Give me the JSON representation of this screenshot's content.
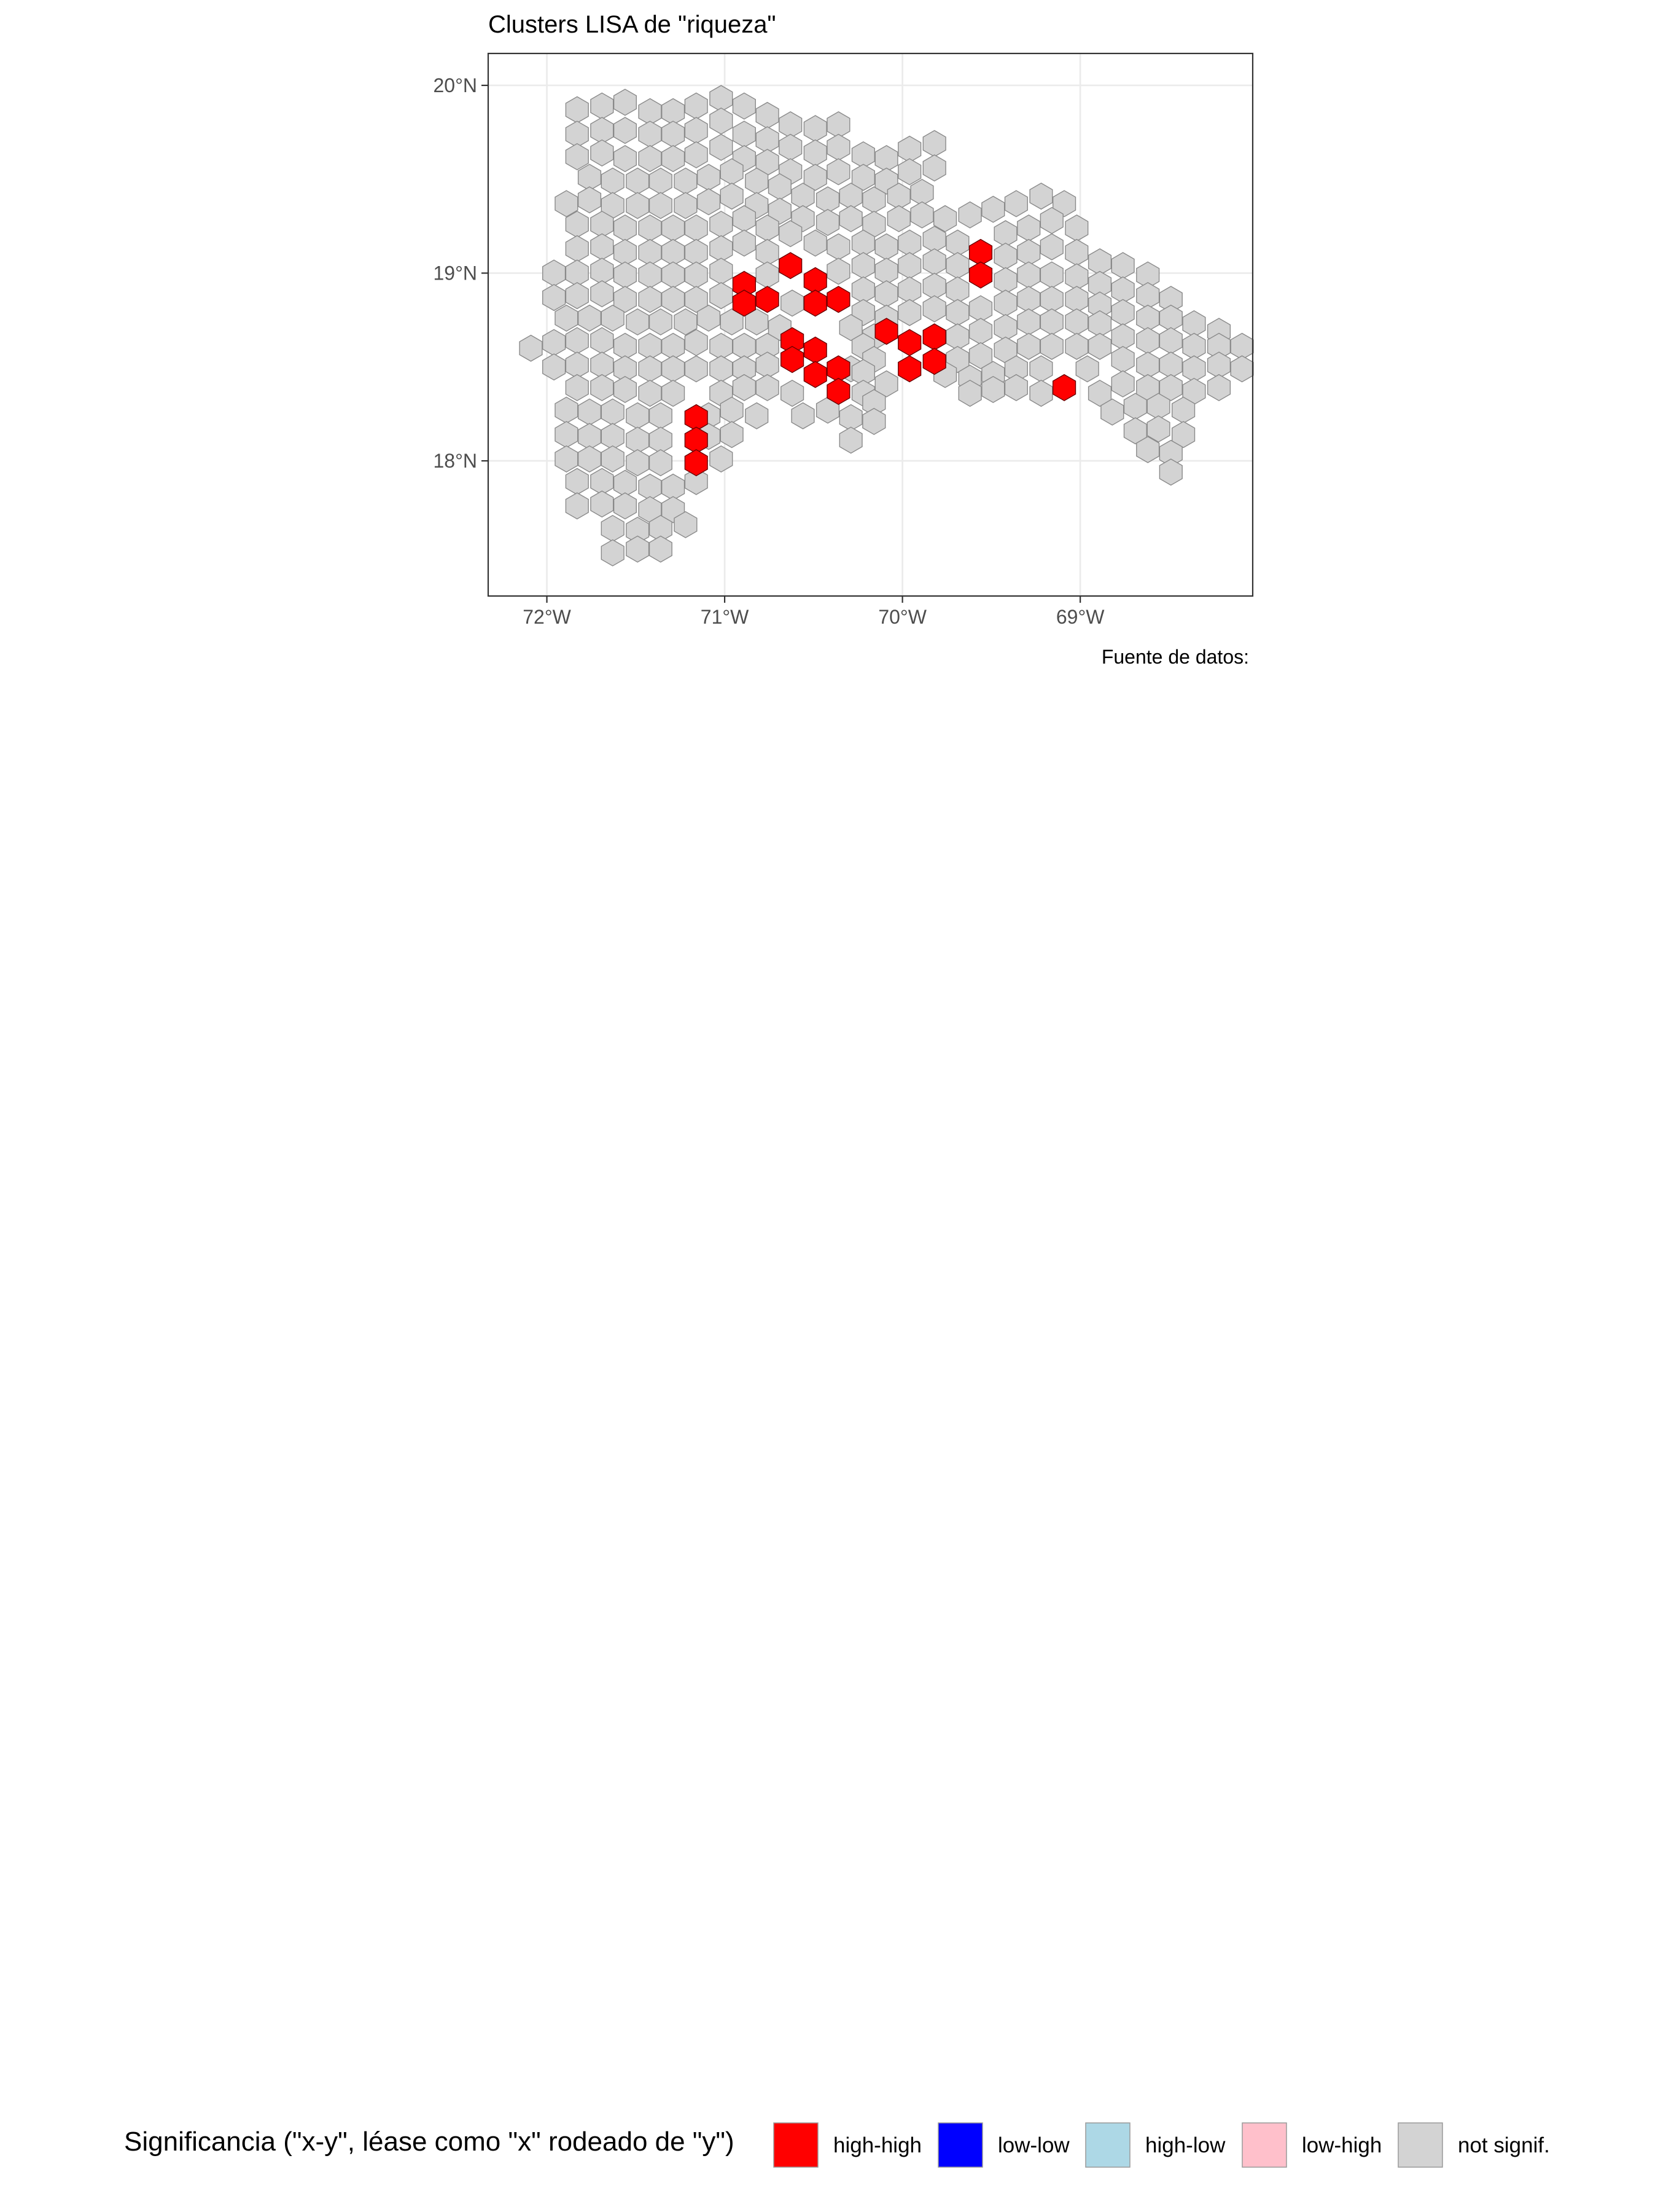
{
  "chart_data": {
    "type": "map",
    "title": "Clusters LISA de \"riqueza\"",
    "caption": "Fuente de datos:",
    "x_ticks": [
      {
        "lon": -72,
        "label": "72°W"
      },
      {
        "lon": -71,
        "label": "71°W"
      },
      {
        "lon": -70,
        "label": "70°W"
      },
      {
        "lon": -69,
        "label": "69°W"
      }
    ],
    "y_ticks": [
      {
        "lat": 20,
        "label": "20°N"
      },
      {
        "lat": 19,
        "label": "19°N"
      },
      {
        "lat": 18,
        "label": "18°N"
      }
    ],
    "xlim": [
      -72.33,
      -68.03
    ],
    "ylim": [
      17.28,
      20.17
    ],
    "grid": true,
    "legend_position": "bottom",
    "legend": {
      "title": "Significancia (\"x-y\", léase como \"x\" rodeado de \"y\")",
      "items": [
        {
          "key": "high-high",
          "label": "high-high",
          "color": "#ff0000"
        },
        {
          "key": "low-low",
          "label": "low-low",
          "color": "#0000ff"
        },
        {
          "key": "high-low",
          "label": "high-low",
          "color": "#add8e6"
        },
        {
          "key": "low-high",
          "label": "low-high",
          "color": "#ffc0cb"
        },
        {
          "key": "not-signif",
          "label": "not signif.",
          "color": "#d3d3d3"
        }
      ]
    },
    "hex_width_lon": 0.127,
    "cells_not_significant": [
      [
        -71.83,
        19.87
      ],
      [
        -71.69,
        19.89
      ],
      [
        -71.56,
        19.91
      ],
      [
        -71.42,
        19.86
      ],
      [
        -71.29,
        19.86
      ],
      [
        -71.16,
        19.89
      ],
      [
        -71.02,
        19.93
      ],
      [
        -70.89,
        19.89
      ],
      [
        -70.76,
        19.84
      ],
      [
        -70.63,
        19.79
      ],
      [
        -70.49,
        19.77
      ],
      [
        -70.36,
        19.79
      ],
      [
        -71.83,
        19.74
      ],
      [
        -71.69,
        19.76
      ],
      [
        -71.56,
        19.76
      ],
      [
        -71.42,
        19.74
      ],
      [
        -71.29,
        19.74
      ],
      [
        -71.16,
        19.76
      ],
      [
        -71.02,
        19.81
      ],
      [
        -70.89,
        19.74
      ],
      [
        -70.76,
        19.71
      ],
      [
        -70.63,
        19.67
      ],
      [
        -70.49,
        19.64
      ],
      [
        -70.36,
        19.67
      ],
      [
        -70.22,
        19.63
      ],
      [
        -70.09,
        19.61
      ],
      [
        -69.96,
        19.66
      ],
      [
        -69.82,
        19.69
      ],
      [
        -71.83,
        19.62
      ],
      [
        -71.69,
        19.64
      ],
      [
        -71.56,
        19.61
      ],
      [
        -71.42,
        19.61
      ],
      [
        -71.29,
        19.61
      ],
      [
        -71.16,
        19.63
      ],
      [
        -71.02,
        19.67
      ],
      [
        -70.89,
        19.61
      ],
      [
        -70.76,
        19.59
      ],
      [
        -70.63,
        19.54
      ],
      [
        -70.49,
        19.51
      ],
      [
        -70.36,
        19.54
      ],
      [
        -70.22,
        19.51
      ],
      [
        -70.09,
        19.49
      ],
      [
        -69.96,
        19.54
      ],
      [
        -69.82,
        19.56
      ],
      [
        -71.76,
        19.51
      ],
      [
        -71.63,
        19.49
      ],
      [
        -71.49,
        19.49
      ],
      [
        -71.36,
        19.49
      ],
      [
        -71.22,
        19.49
      ],
      [
        -71.09,
        19.51
      ],
      [
        -70.96,
        19.54
      ],
      [
        -70.82,
        19.49
      ],
      [
        -70.69,
        19.46
      ],
      [
        -70.56,
        19.41
      ],
      [
        -70.42,
        19.39
      ],
      [
        -70.29,
        19.41
      ],
      [
        -70.16,
        19.39
      ],
      [
        -70.02,
        19.41
      ],
      [
        -69.89,
        19.43
      ],
      [
        -71.89,
        19.37
      ],
      [
        -71.76,
        19.39
      ],
      [
        -71.63,
        19.36
      ],
      [
        -71.49,
        19.36
      ],
      [
        -71.36,
        19.36
      ],
      [
        -71.22,
        19.36
      ],
      [
        -71.09,
        19.38
      ],
      [
        -70.96,
        19.41
      ],
      [
        -70.82,
        19.36
      ],
      [
        -70.69,
        19.33
      ],
      [
        -70.56,
        19.29
      ],
      [
        -70.42,
        19.27
      ],
      [
        -70.29,
        19.29
      ],
      [
        -70.16,
        19.26
      ],
      [
        -70.02,
        19.29
      ],
      [
        -69.89,
        19.31
      ],
      [
        -69.76,
        19.29
      ],
      [
        -69.62,
        19.31
      ],
      [
        -69.49,
        19.34
      ],
      [
        -69.36,
        19.37
      ],
      [
        -69.22,
        19.41
      ],
      [
        -69.09,
        19.37
      ],
      [
        -71.83,
        19.26
      ],
      [
        -71.69,
        19.26
      ],
      [
        -71.56,
        19.24
      ],
      [
        -71.42,
        19.24
      ],
      [
        -71.29,
        19.24
      ],
      [
        -71.16,
        19.24
      ],
      [
        -71.02,
        19.26
      ],
      [
        -70.89,
        19.29
      ],
      [
        -70.76,
        19.24
      ],
      [
        -70.63,
        19.21
      ],
      [
        -70.49,
        19.16
      ],
      [
        -70.36,
        19.14
      ],
      [
        -70.22,
        19.16
      ],
      [
        -70.09,
        19.14
      ],
      [
        -69.96,
        19.16
      ],
      [
        -69.82,
        19.18
      ],
      [
        -69.69,
        19.16
      ],
      [
        -69.42,
        19.21
      ],
      [
        -69.29,
        19.24
      ],
      [
        -69.16,
        19.28
      ],
      [
        -69.02,
        19.24
      ],
      [
        -71.83,
        19.13
      ],
      [
        -71.69,
        19.14
      ],
      [
        -71.56,
        19.11
      ],
      [
        -71.42,
        19.11
      ],
      [
        -71.29,
        19.11
      ],
      [
        -71.16,
        19.11
      ],
      [
        -71.02,
        19.13
      ],
      [
        -70.89,
        19.16
      ],
      [
        -70.76,
        19.11
      ],
      [
        -70.36,
        19.01
      ],
      [
        -70.22,
        19.04
      ],
      [
        -70.09,
        19.01
      ],
      [
        -69.96,
        19.04
      ],
      [
        -69.82,
        19.06
      ],
      [
        -69.69,
        19.04
      ],
      [
        -69.42,
        19.09
      ],
      [
        -69.29,
        19.11
      ],
      [
        -69.16,
        19.14
      ],
      [
        -69.02,
        19.11
      ],
      [
        -68.89,
        19.06
      ],
      [
        -71.96,
        19.0
      ],
      [
        -71.83,
        19.0
      ],
      [
        -71.69,
        19.01
      ],
      [
        -71.56,
        18.99
      ],
      [
        -71.42,
        18.99
      ],
      [
        -71.29,
        18.99
      ],
      [
        -71.16,
        18.99
      ],
      [
        -71.02,
        19.01
      ],
      [
        -70.76,
        18.99
      ],
      [
        -70.22,
        18.91
      ],
      [
        -70.09,
        18.89
      ],
      [
        -69.96,
        18.91
      ],
      [
        -69.82,
        18.93
      ],
      [
        -69.69,
        18.91
      ],
      [
        -69.42,
        18.96
      ],
      [
        -69.29,
        18.99
      ],
      [
        -69.16,
        18.99
      ],
      [
        -69.02,
        18.98
      ],
      [
        -68.89,
        18.94
      ],
      [
        -68.76,
        19.04
      ],
      [
        -68.62,
        18.99
      ],
      [
        -71.96,
        18.87
      ],
      [
        -71.83,
        18.88
      ],
      [
        -71.69,
        18.89
      ],
      [
        -71.56,
        18.86
      ],
      [
        -71.42,
        18.86
      ],
      [
        -71.29,
        18.86
      ],
      [
        -71.16,
        18.86
      ],
      [
        -71.02,
        18.88
      ],
      [
        -70.62,
        18.84
      ],
      [
        -70.22,
        18.79
      ],
      [
        -70.09,
        18.76
      ],
      [
        -69.96,
        18.79
      ],
      [
        -69.82,
        18.81
      ],
      [
        -69.69,
        18.79
      ],
      [
        -69.56,
        18.81
      ],
      [
        -69.42,
        18.84
      ],
      [
        -69.29,
        18.86
      ],
      [
        -69.16,
        18.86
      ],
      [
        -69.02,
        18.86
      ],
      [
        -68.89,
        18.83
      ],
      [
        -68.76,
        18.91
      ],
      [
        -68.62,
        18.88
      ],
      [
        -68.49,
        18.86
      ],
      [
        -71.89,
        18.76
      ],
      [
        -71.76,
        18.76
      ],
      [
        -71.63,
        18.76
      ],
      [
        -71.49,
        18.74
      ],
      [
        -71.36,
        18.74
      ],
      [
        -71.22,
        18.74
      ],
      [
        -71.09,
        18.76
      ],
      [
        -70.96,
        18.74
      ],
      [
        -70.82,
        18.74
      ],
      [
        -70.69,
        18.71
      ],
      [
        -70.29,
        18.71
      ],
      [
        -70.16,
        18.66
      ],
      [
        -69.69,
        18.66
      ],
      [
        -69.56,
        18.69
      ],
      [
        -69.42,
        18.71
      ],
      [
        -69.29,
        18.74
      ],
      [
        -69.16,
        18.74
      ],
      [
        -69.02,
        18.74
      ],
      [
        -68.89,
        18.73
      ],
      [
        -68.76,
        18.79
      ],
      [
        -68.62,
        18.76
      ],
      [
        -68.49,
        18.76
      ],
      [
        -68.36,
        18.73
      ],
      [
        -68.22,
        18.69
      ],
      [
        -72.09,
        18.6
      ],
      [
        -71.96,
        18.63
      ],
      [
        -71.83,
        18.64
      ],
      [
        -71.69,
        18.64
      ],
      [
        -71.56,
        18.61
      ],
      [
        -71.42,
        18.61
      ],
      [
        -71.29,
        18.61
      ],
      [
        -71.16,
        18.63
      ],
      [
        -71.02,
        18.61
      ],
      [
        -70.89,
        18.61
      ],
      [
        -70.76,
        18.61
      ],
      [
        -70.22,
        18.61
      ],
      [
        -70.16,
        18.54
      ],
      [
        -69.69,
        18.54
      ],
      [
        -69.56,
        18.56
      ],
      [
        -69.42,
        18.59
      ],
      [
        -69.29,
        18.61
      ],
      [
        -69.16,
        18.61
      ],
      [
        -69.02,
        18.61
      ],
      [
        -68.89,
        18.61
      ],
      [
        -68.76,
        18.66
      ],
      [
        -68.62,
        18.64
      ],
      [
        -68.49,
        18.64
      ],
      [
        -68.36,
        18.61
      ],
      [
        -68.22,
        18.61
      ],
      [
        -68.09,
        18.61
      ],
      [
        -71.96,
        18.5
      ],
      [
        -71.83,
        18.51
      ],
      [
        -71.69,
        18.51
      ],
      [
        -71.56,
        18.49
      ],
      [
        -71.42,
        18.49
      ],
      [
        -71.29,
        18.49
      ],
      [
        -71.16,
        18.49
      ],
      [
        -71.02,
        18.49
      ],
      [
        -70.89,
        18.49
      ],
      [
        -70.76,
        18.51
      ],
      [
        -70.29,
        18.49
      ],
      [
        -70.22,
        18.47
      ],
      [
        -70.09,
        18.41
      ],
      [
        -69.76,
        18.46
      ],
      [
        -69.62,
        18.44
      ],
      [
        -69.49,
        18.46
      ],
      [
        -69.36,
        18.49
      ],
      [
        -69.22,
        18.49
      ],
      [
        -68.96,
        18.49
      ],
      [
        -68.76,
        18.54
      ],
      [
        -68.62,
        18.51
      ],
      [
        -68.49,
        18.51
      ],
      [
        -68.36,
        18.49
      ],
      [
        -68.22,
        18.51
      ],
      [
        -68.09,
        18.49
      ],
      [
        -71.83,
        18.39
      ],
      [
        -71.69,
        18.39
      ],
      [
        -71.56,
        18.38
      ],
      [
        -71.42,
        18.36
      ],
      [
        -71.29,
        18.36
      ],
      [
        -71.02,
        18.36
      ],
      [
        -70.89,
        18.39
      ],
      [
        -70.76,
        18.39
      ],
      [
        -70.62,
        18.36
      ],
      [
        -70.22,
        18.36
      ],
      [
        -70.16,
        18.31
      ],
      [
        -69.62,
        18.36
      ],
      [
        -69.49,
        18.38
      ],
      [
        -69.36,
        18.39
      ],
      [
        -69.22,
        18.36
      ],
      [
        -68.89,
        18.36
      ],
      [
        -68.76,
        18.41
      ],
      [
        -68.62,
        18.39
      ],
      [
        -68.49,
        18.39
      ],
      [
        -68.36,
        18.37
      ],
      [
        -68.22,
        18.39
      ],
      [
        -71.89,
        18.27
      ],
      [
        -71.76,
        18.26
      ],
      [
        -71.63,
        18.26
      ],
      [
        -71.49,
        18.24
      ],
      [
        -71.36,
        18.24
      ],
      [
        -71.09,
        18.24
      ],
      [
        -70.96,
        18.27
      ],
      [
        -70.82,
        18.24
      ],
      [
        -70.56,
        18.24
      ],
      [
        -70.42,
        18.27
      ],
      [
        -70.29,
        18.23
      ],
      [
        -70.16,
        18.21
      ],
      [
        -68.82,
        18.26
      ],
      [
        -68.69,
        18.29
      ],
      [
        -68.56,
        18.29
      ],
      [
        -68.42,
        18.27
      ],
      [
        -71.89,
        18.14
      ],
      [
        -71.76,
        18.13
      ],
      [
        -71.63,
        18.13
      ],
      [
        -71.49,
        18.11
      ],
      [
        -71.36,
        18.11
      ],
      [
        -71.09,
        18.13
      ],
      [
        -70.96,
        18.14
      ],
      [
        -70.29,
        18.11
      ],
      [
        -68.69,
        18.16
      ],
      [
        -68.56,
        18.17
      ],
      [
        -68.42,
        18.14
      ],
      [
        -71.89,
        18.01
      ],
      [
        -71.76,
        18.01
      ],
      [
        -71.63,
        18.01
      ],
      [
        -71.49,
        17.99
      ],
      [
        -71.36,
        17.99
      ],
      [
        -71.02,
        18.01
      ],
      [
        -68.62,
        18.06
      ],
      [
        -68.49,
        18.04
      ],
      [
        -71.83,
        17.89
      ],
      [
        -71.69,
        17.89
      ],
      [
        -71.56,
        17.88
      ],
      [
        -71.42,
        17.86
      ],
      [
        -71.29,
        17.86
      ],
      [
        -71.16,
        17.89
      ],
      [
        -68.49,
        17.94
      ],
      [
        -71.83,
        17.76
      ],
      [
        -71.69,
        17.77
      ],
      [
        -71.56,
        17.76
      ],
      [
        -71.42,
        17.74
      ],
      [
        -71.29,
        17.74
      ],
      [
        -71.63,
        17.64
      ],
      [
        -71.49,
        17.63
      ],
      [
        -71.36,
        17.64
      ],
      [
        -71.22,
        17.66
      ],
      [
        -71.63,
        17.51
      ],
      [
        -71.49,
        17.53
      ],
      [
        -71.36,
        17.53
      ]
    ],
    "cells_high_high": [
      [
        -70.89,
        18.94
      ],
      [
        -70.89,
        18.84
      ],
      [
        -70.76,
        18.86
      ],
      [
        -70.63,
        19.04
      ],
      [
        -70.49,
        18.96
      ],
      [
        -70.49,
        18.84
      ],
      [
        -70.36,
        18.86
      ],
      [
        -70.62,
        18.64
      ],
      [
        -70.62,
        18.54
      ],
      [
        -70.49,
        18.59
      ],
      [
        -70.49,
        18.46
      ],
      [
        -70.36,
        18.49
      ],
      [
        -70.36,
        18.37
      ],
      [
        -70.09,
        18.69
      ],
      [
        -69.96,
        18.63
      ],
      [
        -69.82,
        18.66
      ],
      [
        -69.96,
        18.49
      ],
      [
        -69.82,
        18.53
      ],
      [
        -69.56,
        19.11
      ],
      [
        -69.56,
        18.99
      ],
      [
        -69.09,
        18.39
      ],
      [
        -71.16,
        18.23
      ],
      [
        -71.16,
        18.11
      ],
      [
        -71.16,
        17.99
      ]
    ],
    "cells_low_low": [],
    "cells_high_low": [],
    "cells_low_high": []
  }
}
